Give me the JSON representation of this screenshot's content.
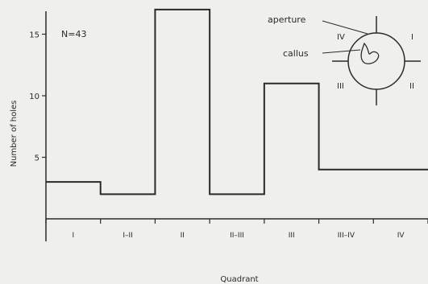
{
  "chart_data": {
    "type": "step",
    "sample_label": "N=43",
    "xlabel": "Quadrant",
    "ylabel": "Number of holes",
    "ylim": [
      0,
      18
    ],
    "yticks": [
      5,
      10,
      15
    ],
    "categories": [
      "I",
      "I–II",
      "II",
      "II–III",
      "III",
      "III–IV",
      "IV"
    ],
    "values": [
      3,
      2,
      17,
      2,
      11,
      4,
      4
    ],
    "grid": false,
    "inset": {
      "labels": [
        "aperture",
        "callus"
      ],
      "quadrants": [
        "I",
        "II",
        "III",
        "IV"
      ]
    }
  }
}
